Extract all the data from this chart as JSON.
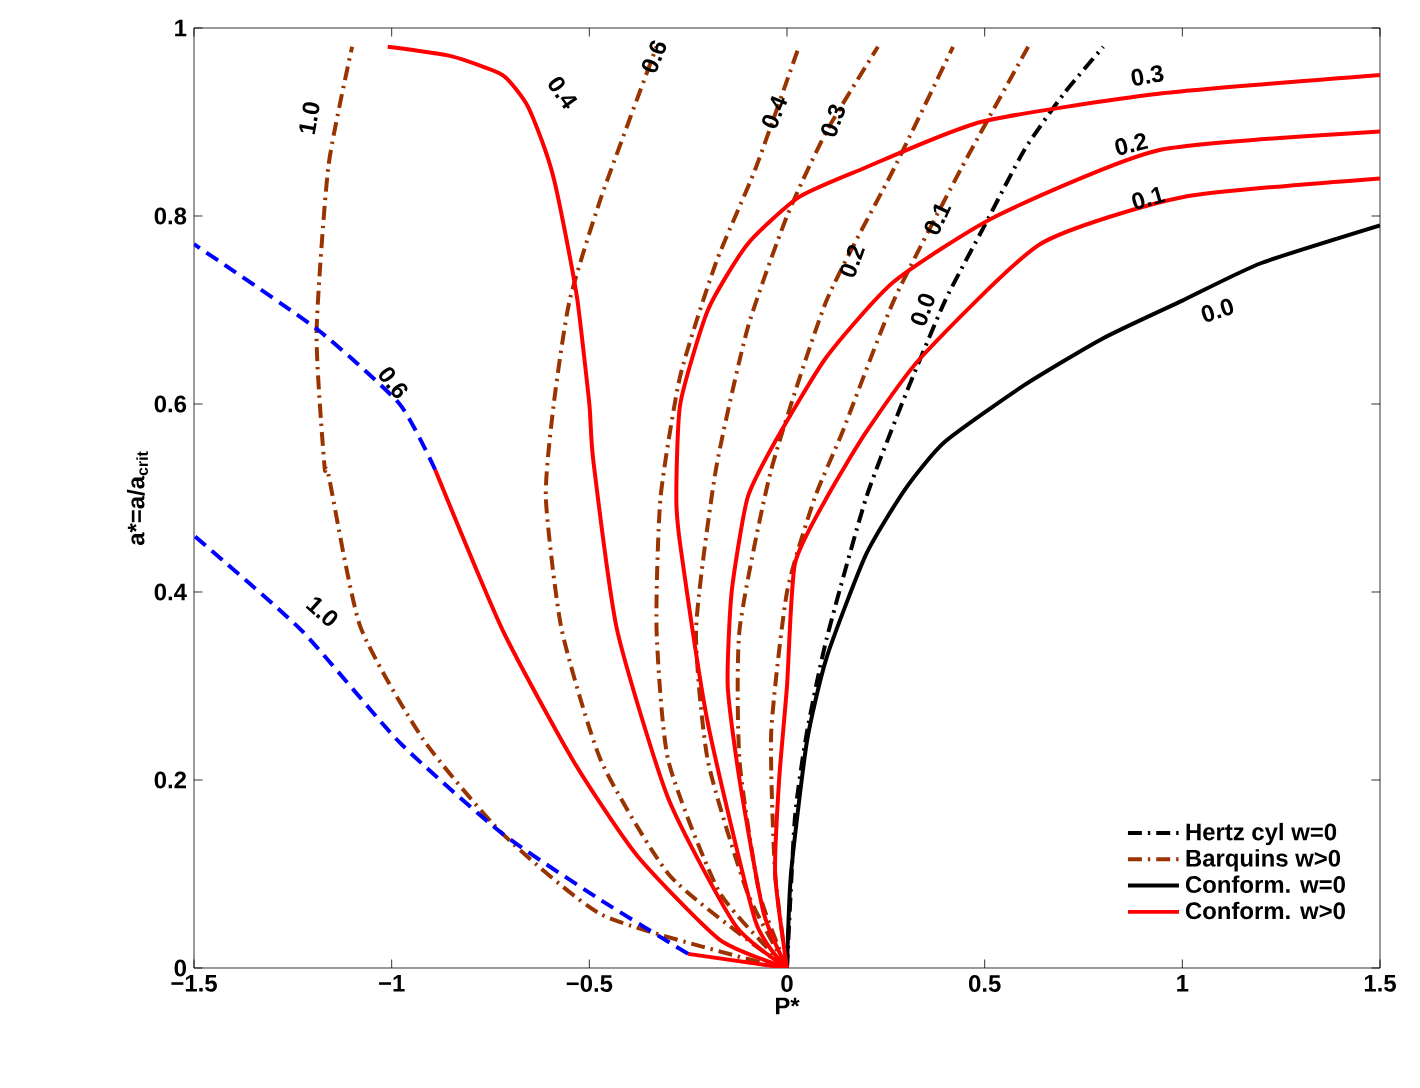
{
  "chart_data": {
    "type": "line",
    "xlabel": "P*",
    "ylabel": "a*=a/a$_{crit}$",
    "xlim": [
      -1.5,
      1.5
    ],
    "ylim": [
      0,
      1
    ],
    "xticks": [
      {
        "value": -1.5,
        "label": "−1.5"
      },
      {
        "value": -1,
        "label": "−1"
      },
      {
        "value": -0.5,
        "label": "−0.5"
      },
      0,
      0.5,
      1,
      1.5
    ],
    "yticks": [
      0,
      0.2,
      0.4,
      0.6,
      0.8,
      1
    ],
    "grid": false,
    "legend": "bottom right",
    "series": [
      {
        "name": "Hertz cyl w=0",
        "color": "#000000",
        "line_style": "dashdot",
        "x": [
          0,
          0.02,
          0.05,
          0.1,
          0.2,
          0.3,
          0.4,
          0.5,
          0.6,
          0.7,
          0.8
        ],
        "values": [
          0,
          0.16,
          0.25,
          0.35,
          0.5,
          0.61,
          0.71,
          0.79,
          0.87,
          0.93,
          0.98
        ]
      },
      {
        "name": "Barquins w>0",
        "color": "#993300",
        "line_style": "dashdot",
        "x": [
          0,
          -0.13,
          -0.47,
          -0.72,
          -0.92,
          -1.08,
          -1.16,
          -1.17,
          -1.19,
          -1.16,
          -1.1
        ],
        "values": [
          0,
          0.013,
          0.057,
          0.143,
          0.243,
          0.364,
          0.525,
          0.534,
          0.675,
          0.853,
          0.98
        ]
      },
      {
        "color": "#993300",
        "line_style": "dashdot",
        "x": [
          0,
          -0.1,
          -0.3,
          -0.47,
          -0.57,
          -0.61,
          -0.59,
          -0.55,
          -0.47,
          -0.33
        ],
        "values": [
          0,
          0.03,
          0.1,
          0.22,
          0.36,
          0.5,
          0.6,
          0.71,
          0.82,
          0.98
        ]
      },
      {
        "color": "#993300",
        "line_style": "dashdot",
        "x": [
          0,
          -0.17,
          -0.3,
          -0.33,
          -0.32,
          -0.27,
          -0.18,
          -0.08,
          0.03
        ],
        "values": [
          0,
          0.08,
          0.22,
          0.36,
          0.5,
          0.63,
          0.75,
          0.85,
          0.98
        ]
      },
      {
        "color": "#993300",
        "line_style": "dashdot",
        "x": [
          0,
          -0.1,
          -0.2,
          -0.23,
          -0.18,
          -0.1,
          0,
          0.1,
          0.23
        ],
        "values": [
          0,
          0.08,
          0.22,
          0.36,
          0.53,
          0.68,
          0.8,
          0.89,
          0.98
        ]
      },
      {
        "color": "#993300",
        "line_style": "dashdot",
        "x": [
          0,
          -0.07,
          -0.12,
          -0.12,
          -0.04,
          0.1,
          0.27,
          0.42
        ],
        "values": [
          0,
          0.08,
          0.22,
          0.36,
          0.53,
          0.71,
          0.85,
          0.98
        ]
      },
      {
        "color": "#993300",
        "line_style": "dashdot",
        "x": [
          0,
          -0.03,
          -0.04,
          0,
          0.07,
          0.14,
          0.27,
          0.44,
          0.61
        ],
        "values": [
          0,
          0.1,
          0.25,
          0.4,
          0.5,
          0.57,
          0.71,
          0.85,
          0.98
        ]
      },
      {
        "name": "Conform. w=0",
        "color": "#000000",
        "line_style": "solid",
        "x": [
          0,
          0.01,
          0.05,
          0.1,
          0.2,
          0.3,
          0.4,
          0.6,
          0.8,
          1.0,
          1.2,
          1.5
        ],
        "values": [
          0,
          0.1,
          0.24,
          0.33,
          0.44,
          0.51,
          0.56,
          0.62,
          0.67,
          0.71,
          0.75,
          0.79
        ]
      },
      {
        "name": "Conform. w>0",
        "color": "#ff0000",
        "line_style": "solid",
        "x": [
          0,
          -0.03,
          -0.02,
          0,
          0.02,
          0.1,
          0.2,
          0.34,
          0.64,
          1.0,
          1.5
        ],
        "values": [
          0,
          0.1,
          0.2,
          0.3,
          0.43,
          0.5,
          0.57,
          0.65,
          0.77,
          0.82,
          0.84
        ]
      },
      {
        "color": "#ff0000",
        "line_style": "solid",
        "x": [
          0,
          -0.06,
          -0.12,
          -0.15,
          -0.14,
          -0.1,
          -0.03,
          0.1,
          0.27,
          0.53,
          0.94,
          1.5
        ],
        "values": [
          0,
          0.06,
          0.2,
          0.3,
          0.4,
          0.5,
          0.56,
          0.65,
          0.73,
          0.8,
          0.87,
          0.89
        ]
      },
      {
        "color": "#ff0000",
        "line_style": "solid",
        "x": [
          0,
          -0.08,
          -0.2,
          -0.27,
          -0.28,
          -0.27,
          -0.2,
          -0.1,
          0.03,
          0.19,
          0.49,
          0.94,
          1.5
        ],
        "values": [
          0,
          0.05,
          0.26,
          0.45,
          0.5,
          0.6,
          0.7,
          0.77,
          0.82,
          0.85,
          0.9,
          0.93,
          0.95
        ]
      },
      {
        "color": "#ff0000",
        "line_style": "solid",
        "x": [
          0,
          -0.13,
          -0.3,
          -0.43,
          -0.49,
          -0.5,
          -0.53,
          -0.56,
          -0.59,
          -0.62,
          -0.66,
          -0.72,
          -0.85,
          -1.01
        ],
        "values": [
          0,
          0.045,
          0.18,
          0.36,
          0.54,
          0.6,
          0.71,
          0.78,
          0.84,
          0.88,
          0.92,
          0.95,
          0.97,
          0.98
        ]
      },
      {
        "color": "#ff0000",
        "line_style": "solid",
        "x": [
          0,
          -0.17,
          -0.38,
          -0.54,
          -0.72,
          -0.89
        ],
        "values": [
          0,
          0.03,
          0.12,
          0.22,
          0.36,
          0.53
        ]
      },
      {
        "color": "#0000ff",
        "line_style": "dashed",
        "x": [
          -0.89,
          -0.98,
          -1.19,
          -1.5
        ],
        "values": [
          0.53,
          0.6,
          0.68,
          0.77
        ]
      },
      {
        "color": "#ff0000",
        "line_style": "solid",
        "x": [
          0,
          -0.25
        ],
        "values": [
          0,
          0.015
        ]
      },
      {
        "color": "#0000ff",
        "line_style": "dashed",
        "x": [
          -0.25,
          -0.47,
          -0.72,
          -0.98,
          -1.23,
          -1.5
        ],
        "values": [
          0.015,
          0.072,
          0.143,
          0.24,
          0.36,
          0.46
        ]
      }
    ],
    "annotations": [
      {
        "text": "1.0",
        "x": -1.13,
        "y": 0.92
      },
      {
        "text": "0.4",
        "x": -0.66,
        "y": 0.92
      },
      {
        "text": "0.6",
        "x": -0.365,
        "y": 0.94
      },
      {
        "text": "0.4",
        "x": -0.004,
        "y": 0.94
      },
      {
        "text": "0.3",
        "x": 0.143,
        "y": 0.92
      },
      {
        "text": "0.2",
        "x": 0.197,
        "y": 0.79
      },
      {
        "text": "0.1",
        "x": 0.416,
        "y": 0.83
      },
      {
        "text": "0.0",
        "x": 0.4,
        "y": 0.71
      },
      {
        "text": "0.3",
        "x": 0.94,
        "y": 0.93
      },
      {
        "text": "0.2",
        "x": 0.88,
        "y": 0.86
      },
      {
        "text": "0.1",
        "x": 0.92,
        "y": 0.809
      },
      {
        "text": "0.0",
        "x": 1.07,
        "y": 0.724
      },
      {
        "text": "0.6",
        "x": -1.02,
        "y": 0.615
      },
      {
        "text": "1.0",
        "x": -1.23,
        "y": 0.36
      }
    ]
  }
}
